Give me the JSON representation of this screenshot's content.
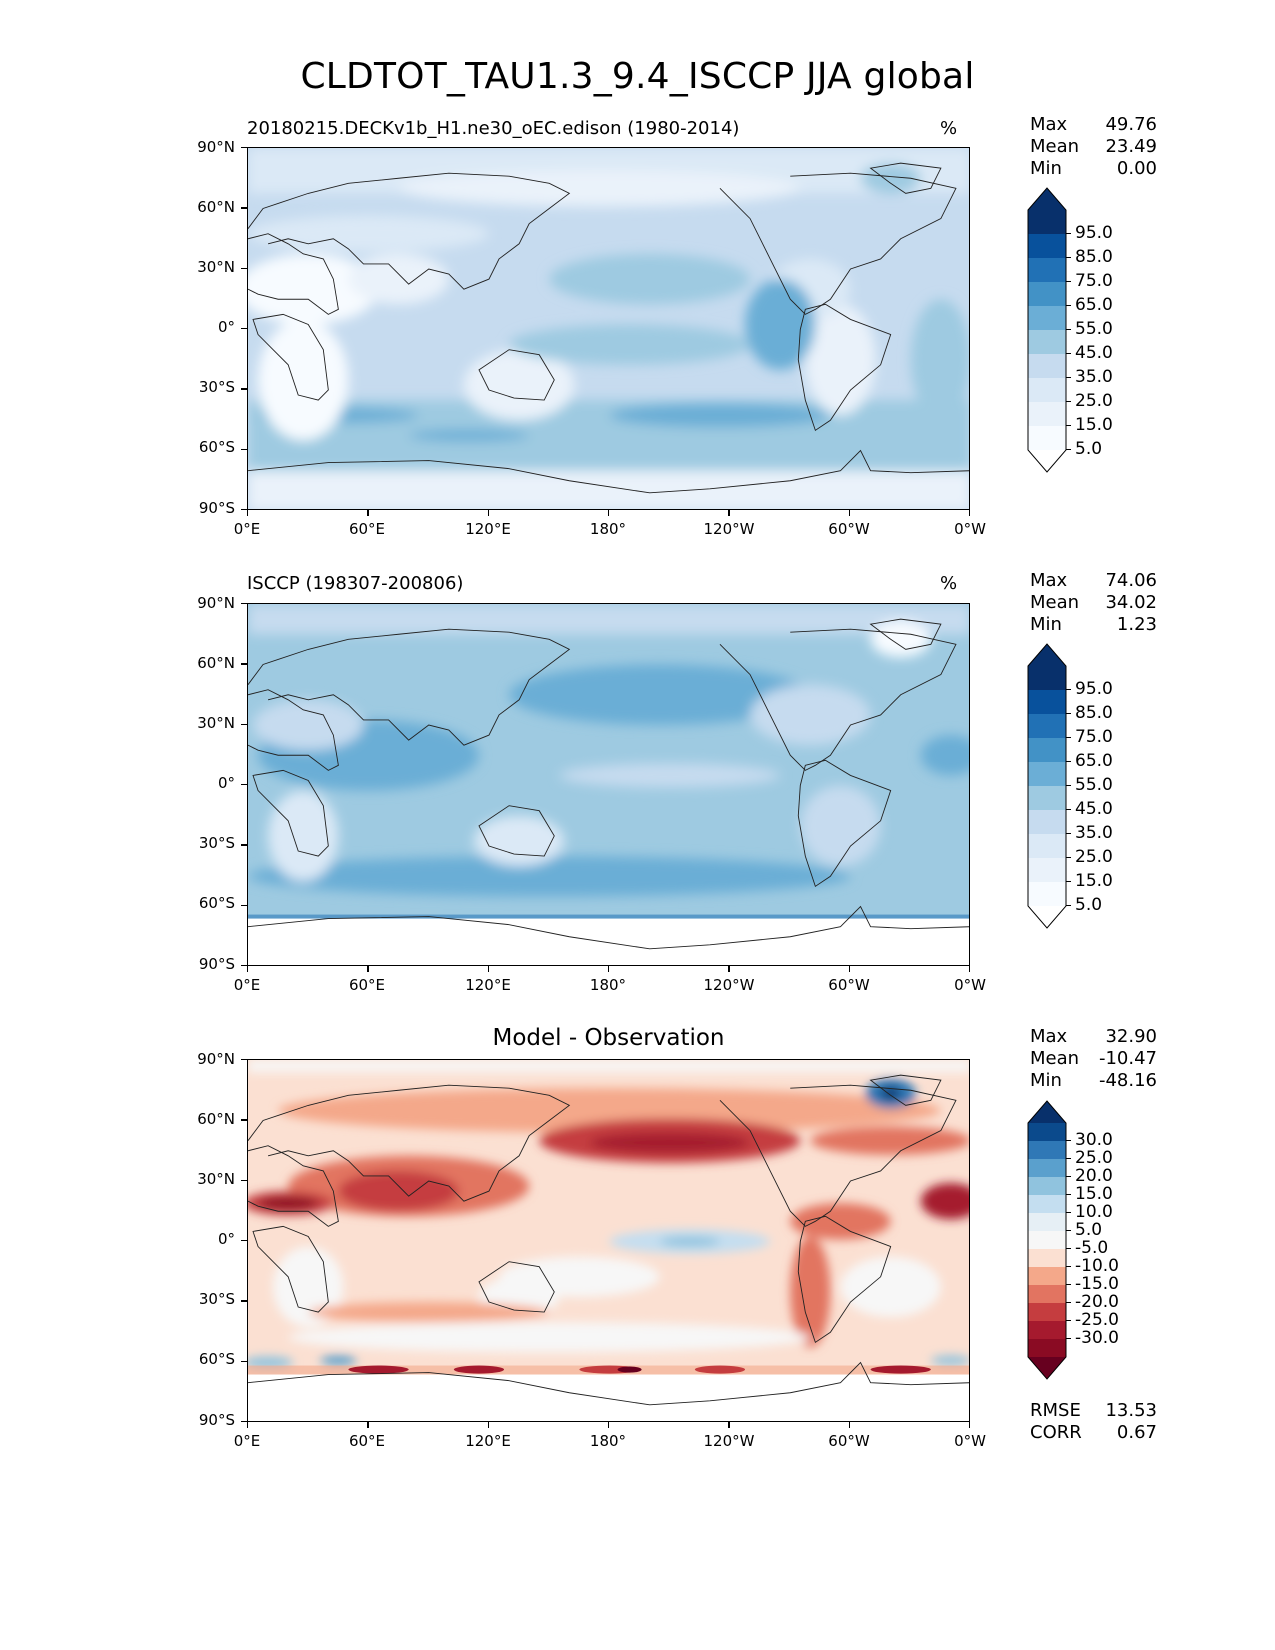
{
  "title": "CLDTOT_TAU1.3_9.4_ISCCP JJA global",
  "panels": [
    {
      "id": "test",
      "title": "20180215.DECKv1b_H1.ne30_oEC.edison (1980-2014)",
      "units": "%",
      "stats": [
        {
          "label": "Max",
          "value": "49.76"
        },
        {
          "label": "Mean",
          "value": "23.49"
        },
        {
          "label": "Min",
          "value": "0.00"
        }
      ],
      "colorbar": {
        "labels": [
          "95.0",
          "85.0",
          "75.0",
          "65.0",
          "55.0",
          "45.0",
          "35.0",
          "25.0",
          "15.0",
          "5.0"
        ],
        "colors": [
          "#08306b",
          "#08519c",
          "#2171b5",
          "#4292c6",
          "#6baed6",
          "#9ecae1",
          "#c6dbef",
          "#dbe9f6",
          "#eaf2fa",
          "#f7fbff"
        ],
        "extend_top": "#08306b",
        "extend_bottom": "#ffffff"
      }
    },
    {
      "id": "reference",
      "title": "ISCCP (198307-200806)",
      "units": "%",
      "stats": [
        {
          "label": "Max",
          "value": "74.06"
        },
        {
          "label": "Mean",
          "value": "34.02"
        },
        {
          "label": "Min",
          "value": "1.23"
        }
      ],
      "colorbar": {
        "labels": [
          "95.0",
          "85.0",
          "75.0",
          "65.0",
          "55.0",
          "45.0",
          "35.0",
          "25.0",
          "15.0",
          "5.0"
        ],
        "colors": [
          "#08306b",
          "#08519c",
          "#2171b5",
          "#4292c6",
          "#6baed6",
          "#9ecae1",
          "#c6dbef",
          "#dbe9f6",
          "#eaf2fa",
          "#f7fbff"
        ],
        "extend_top": "#08306b",
        "extend_bottom": "#ffffff"
      }
    },
    {
      "id": "diff",
      "title": "Model - Observation",
      "units": "",
      "stats": [
        {
          "label": "Max",
          "value": "32.90"
        },
        {
          "label": "Mean",
          "value": "-10.47"
        },
        {
          "label": "Min",
          "value": "-48.16"
        }
      ],
      "extra_stats": [
        {
          "label": "RMSE",
          "value": "13.53"
        },
        {
          "label": "CORR",
          "value": "0.67"
        }
      ],
      "colorbar": {
        "labels": [
          "30.0",
          "25.0",
          "20.0",
          "15.0",
          "10.0",
          "5.0",
          "-5.0",
          "-10.0",
          "-15.0",
          "-20.0",
          "-25.0",
          "-30.0"
        ],
        "colors": [
          "#0b4a8c",
          "#2f78b6",
          "#5aa0cd",
          "#90c3de",
          "#c4def0",
          "#e6eff5",
          "#f7f7f7",
          "#fbe0d2",
          "#f4a88a",
          "#e27461",
          "#c53d3f",
          "#a51a2e",
          "#8a0b23"
        ],
        "extend_top": "#08306b",
        "extend_bottom": "#67001f"
      }
    }
  ],
  "lat_ticks": [
    "90°N",
    "60°N",
    "30°N",
    "0°",
    "30°S",
    "60°S",
    "90°S"
  ],
  "lon_ticks": [
    "0°E",
    "60°E",
    "120°E",
    "180°",
    "120°W",
    "60°W",
    "0°W"
  ],
  "chart_data": [
    {
      "type": "heatmap",
      "title": "20180215.DECKv1b_H1.ne30_oEC.edison (1980-2014)",
      "variable": "CLDTOT_TAU1.3_9.4_ISCCP",
      "season": "JJA",
      "units": "%",
      "xlim": [
        0,
        360
      ],
      "ylim": [
        -90,
        90
      ],
      "x_ticks": [
        "0°E",
        "60°E",
        "120°E",
        "180°",
        "120°W",
        "60°W",
        "0°W"
      ],
      "y_ticks": [
        "90°N",
        "60°N",
        "30°N",
        "0°",
        "30°S",
        "60°S",
        "90°S"
      ],
      "contour_levels": [
        5,
        15,
        25,
        35,
        45,
        55,
        65,
        75,
        85,
        95
      ],
      "max": 49.76,
      "mean": 23.49,
      "min": 0.0
    },
    {
      "type": "heatmap",
      "title": "ISCCP (198307-200806)",
      "units": "%",
      "xlim": [
        0,
        360
      ],
      "ylim": [
        -90,
        90
      ],
      "x_ticks": [
        "0°E",
        "60°E",
        "120°E",
        "180°",
        "120°W",
        "60°W",
        "0°W"
      ],
      "y_ticks": [
        "90°N",
        "60°N",
        "30°N",
        "0°",
        "30°S",
        "60°S",
        "90°S"
      ],
      "contour_levels": [
        5,
        15,
        25,
        35,
        45,
        55,
        65,
        75,
        85,
        95
      ],
      "max": 74.06,
      "mean": 34.02,
      "min": 1.23
    },
    {
      "type": "heatmap",
      "title": "Model - Observation",
      "xlim": [
        0,
        360
      ],
      "ylim": [
        -90,
        90
      ],
      "x_ticks": [
        "0°E",
        "60°E",
        "120°E",
        "180°",
        "120°W",
        "60°W",
        "0°W"
      ],
      "y_ticks": [
        "90°N",
        "60°N",
        "30°N",
        "0°",
        "30°S",
        "60°S",
        "90°S"
      ],
      "contour_levels": [
        -30,
        -25,
        -20,
        -15,
        -10,
        -5,
        5,
        10,
        15,
        20,
        25,
        30
      ],
      "max": 32.9,
      "mean": -10.47,
      "min": -48.16,
      "rmse": 13.53,
      "corr": 0.67
    }
  ]
}
